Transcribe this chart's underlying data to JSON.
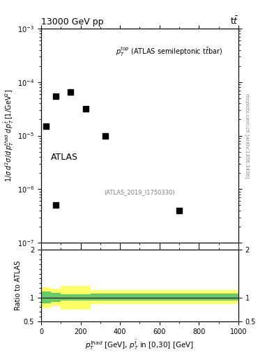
{
  "title_top": "13000 GeV pp",
  "title_right": "tt",
  "annotation_label": "$p_T^{top}$ (ATLAS semileptonic t$\\bar{t}$bar)",
  "atlas_label": "ATLAS",
  "inspire_label": "(ATLAS_2019_I1750330)",
  "arxiv_label": "mcplots.cern.ch [arXiv:1306.3436]",
  "ylabel_main": "1 / σ d²σ / d p_T^{thad} d p_T^{tbar{t}} [1/GeV²]",
  "xlabel": "$p_T^{thad}$ [GeV], $p_T^{t\\bar{t}}$ in [0,30] [GeV]",
  "ylabel_ratio": "Ratio to ATLAS",
  "xlim": [
    0,
    1000
  ],
  "ylim_main": [
    1e-07,
    0.001
  ],
  "ylim_ratio": [
    0.5,
    2.0
  ],
  "data_x": [
    25,
    75,
    150,
    225,
    325,
    75,
    700
  ],
  "data_y": [
    1.5e-05,
    5.5e-05,
    6.5e-05,
    3.2e-05,
    1e-05,
    5e-07,
    4e-07
  ],
  "ratio_segments": [
    {
      "x": [
        0,
        50
      ],
      "green_lo": 0.88,
      "green_hi": 1.12,
      "yellow_lo": 0.78,
      "yellow_hi": 1.22
    },
    {
      "x": [
        50,
        100
      ],
      "green_lo": 0.9,
      "green_hi": 1.1,
      "yellow_lo": 0.82,
      "yellow_hi": 1.18
    },
    {
      "x": [
        100,
        250
      ],
      "green_lo": 0.93,
      "green_hi": 1.07,
      "yellow_lo": 0.75,
      "yellow_hi": 1.25
    },
    {
      "x": [
        250,
        1000
      ],
      "green_lo": 0.93,
      "green_hi": 1.08,
      "yellow_lo": 0.87,
      "yellow_hi": 1.15
    }
  ],
  "green_color": "#66cc66",
  "yellow_color": "#ffff66",
  "marker_color": "black",
  "marker_size": 6
}
